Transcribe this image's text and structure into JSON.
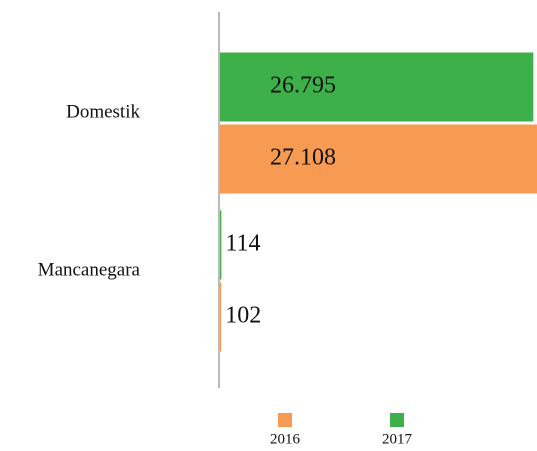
{
  "chart_data": {
    "type": "barh",
    "categories": [
      "Domestik",
      "Mancanegara"
    ],
    "series": [
      {
        "name": "2016",
        "color": "#f79a52",
        "values": [
          27108,
          102
        ],
        "value_labels": [
          "27.108",
          "102"
        ]
      },
      {
        "name": "2017",
        "color": "#3eb049",
        "values": [
          26795,
          114
        ],
        "value_labels": [
          "26.795",
          "114"
        ]
      }
    ],
    "xlim": [
      0,
      27108
    ]
  }
}
